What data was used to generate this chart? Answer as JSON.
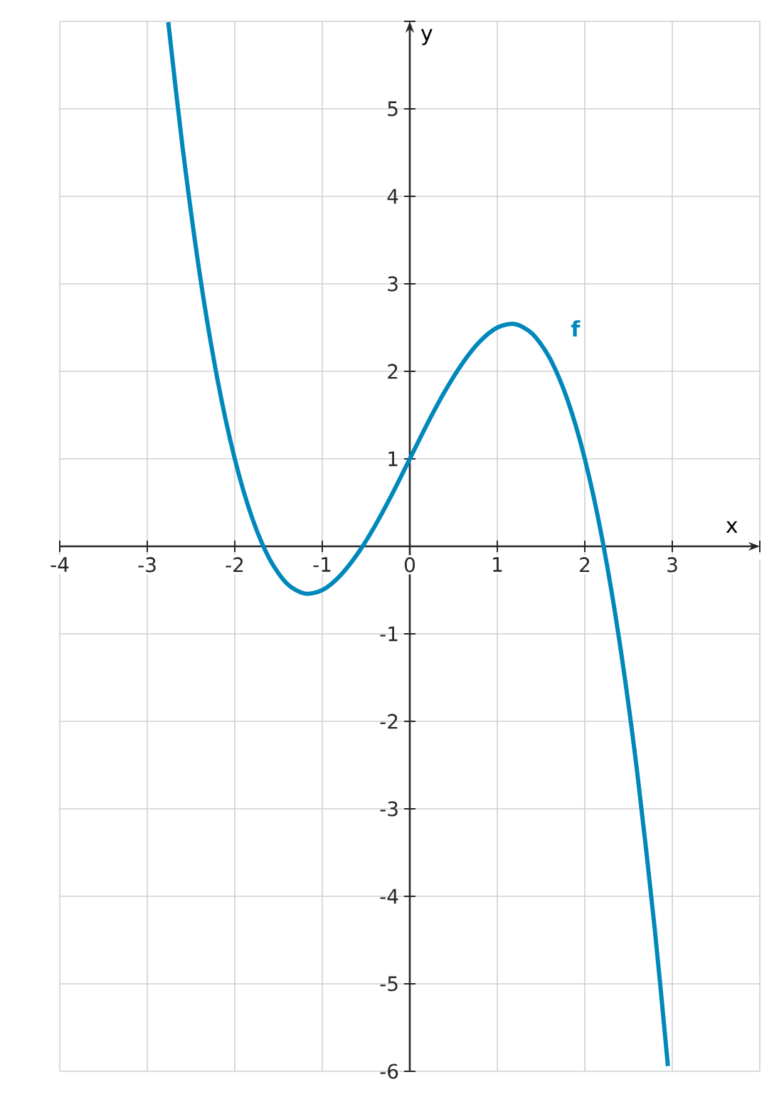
{
  "chart_data": {
    "type": "line",
    "xlabel": "x",
    "ylabel": "y",
    "xlim": [
      -4,
      4
    ],
    "ylim": [
      -6,
      6
    ],
    "xticks": [
      -4,
      -3,
      -2,
      -1,
      0,
      1,
      2,
      3,
      {
        "value": 4,
        "label": null
      }
    ],
    "yticks": [
      -6,
      -5,
      -4,
      -3,
      -2,
      -1,
      1,
      2,
      3,
      4,
      5,
      {
        "value": 6,
        "label": null
      }
    ],
    "grid": true,
    "marker": "none",
    "line_style": "solid",
    "series": [
      {
        "name": "f",
        "color": "#0088bb",
        "x": [
          -2.76,
          -2.6,
          -2.4,
          -2.2,
          -2.0,
          -1.8,
          -1.6,
          -1.4,
          -1.2,
          -1.0,
          -0.8,
          -0.6,
          -0.4,
          -0.2,
          0,
          0.2,
          0.4,
          0.6,
          0.8,
          1.0,
          1.2,
          1.4,
          1.6,
          1.8,
          2.0,
          2.2,
          2.4,
          2.6,
          2.8,
          2.95
        ],
        "values": [
          5.99,
          4.59,
          3.11,
          1.92,
          1,
          0.32,
          -0.15,
          -0.43,
          -0.54,
          -0.5,
          -0.34,
          -0.09,
          0.23,
          0.6,
          1,
          1.4,
          1.77,
          2.09,
          2.34,
          2.5,
          2.54,
          2.43,
          2.15,
          1.68,
          1,
          0.08,
          -1.11,
          -2.59,
          -4.38,
          -5.94
        ]
      }
    ]
  }
}
